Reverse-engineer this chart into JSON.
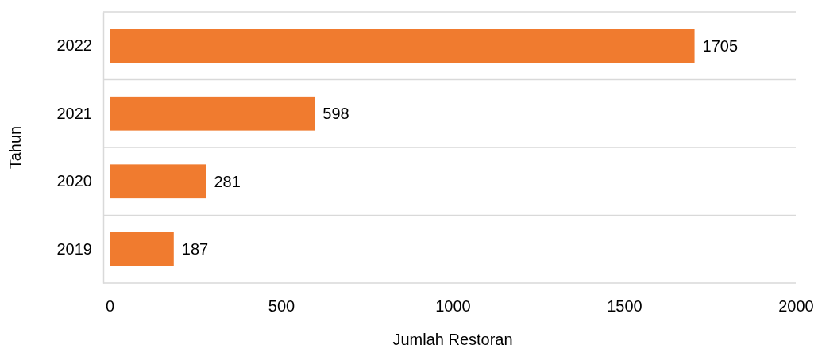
{
  "chart_data": {
    "type": "bar",
    "orientation": "horizontal",
    "xlabel": "Jumlah Restoran",
    "ylabel": "Tahun",
    "categories": [
      "2022",
      "2021",
      "2020",
      "2019"
    ],
    "values": [
      1705,
      598,
      281,
      187
    ],
    "color": "#f07b2f",
    "xlim": [
      0,
      2000
    ],
    "xticks": [
      0,
      500,
      1000,
      1500,
      2000
    ],
    "grid": "y",
    "data_labels": true
  }
}
